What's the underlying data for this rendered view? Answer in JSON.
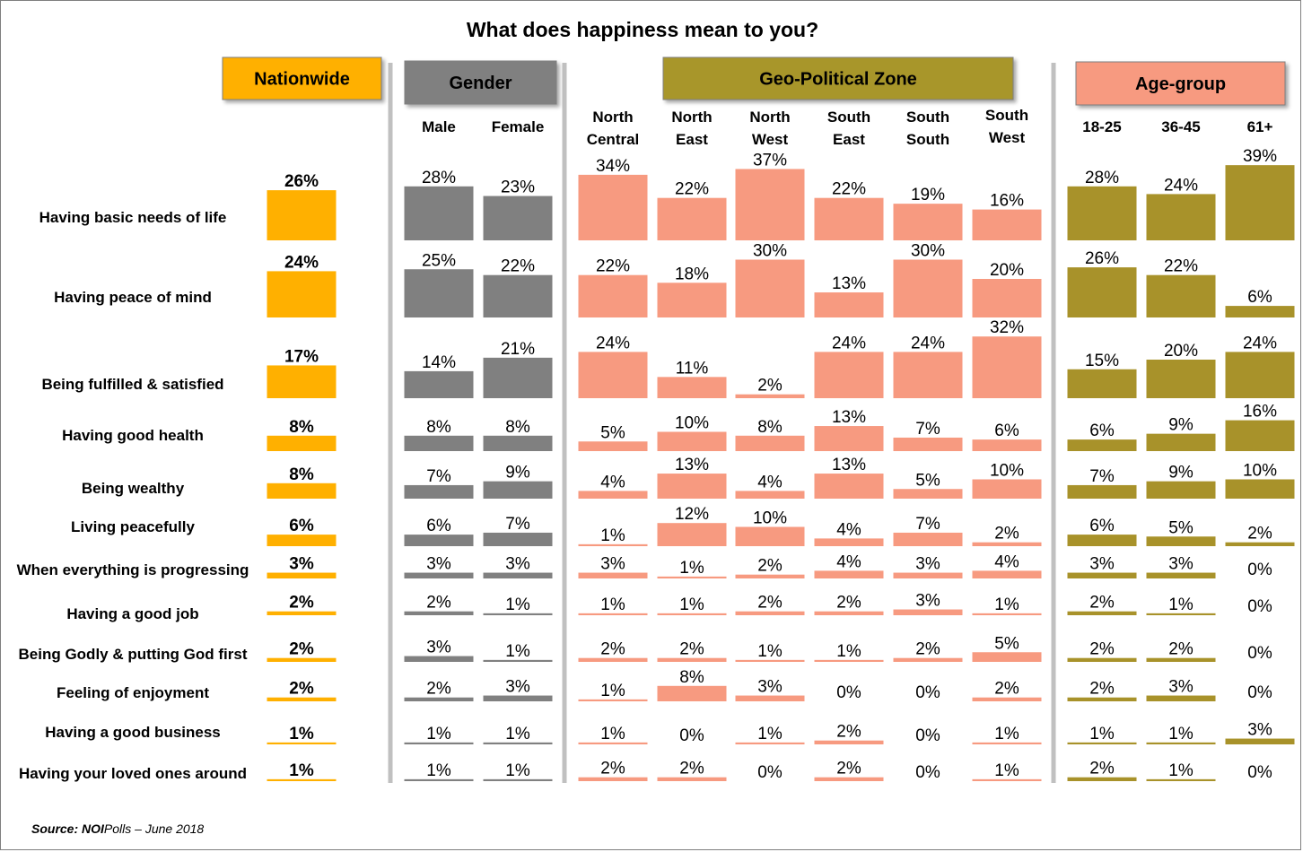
{
  "chart_data": {
    "type": "bar",
    "title": "What does happiness mean to you?",
    "source_prefix": "Source: NOI",
    "source_suffix": "Polls – June 2018",
    "categories": [
      "Having basic needs of life",
      "Having peace of mind",
      "Being fulfilled & satisfied",
      "Having good health",
      "Being wealthy",
      "Living peacefully",
      "When everything is progressing",
      "Having a good job",
      "Being Godly & putting God first",
      "Feeling of enjoyment",
      "Having a good business",
      "Having your loved ones around"
    ],
    "groups": [
      {
        "name": "Nationwide",
        "color": "#FFB000",
        "header_color": "#FFB000",
        "series": [
          {
            "name": "",
            "values": [
              26,
              24,
              17,
              8,
              8,
              6,
              3,
              2,
              2,
              2,
              1,
              1
            ]
          }
        ]
      },
      {
        "name": "Gender",
        "color": "#808080",
        "header_color": "#808080",
        "series": [
          {
            "name": "Male",
            "values": [
              28,
              25,
              14,
              8,
              7,
              6,
              3,
              2,
              3,
              2,
              1,
              1
            ]
          },
          {
            "name": "Female",
            "values": [
              23,
              22,
              21,
              8,
              9,
              7,
              3,
              1,
              1,
              3,
              1,
              1
            ]
          }
        ]
      },
      {
        "name": "Geo-Political Zone",
        "color": "#F79A80",
        "header_color": "#A8962A",
        "series": [
          {
            "name": "North Central",
            "values": [
              34,
              22,
              24,
              5,
              4,
              1,
              3,
              1,
              2,
              1,
              1,
              2
            ]
          },
          {
            "name": "North East",
            "values": [
              22,
              18,
              11,
              10,
              13,
              12,
              1,
              1,
              2,
              8,
              0,
              2
            ]
          },
          {
            "name": "North West",
            "values": [
              37,
              30,
              2,
              8,
              4,
              10,
              2,
              2,
              1,
              3,
              1,
              0
            ]
          },
          {
            "name": "South East",
            "values": [
              22,
              13,
              24,
              13,
              13,
              4,
              4,
              2,
              1,
              0,
              2,
              2
            ]
          },
          {
            "name": "South South",
            "values": [
              19,
              30,
              24,
              7,
              5,
              7,
              3,
              3,
              2,
              0,
              0,
              0
            ]
          },
          {
            "name": "South West",
            "values": [
              16,
              20,
              32,
              6,
              10,
              2,
              4,
              1,
              5,
              2,
              1,
              1
            ]
          }
        ]
      },
      {
        "name": "Age-group",
        "color": "#A8922A",
        "header_color": "#F79A80",
        "series": [
          {
            "name": "18-25",
            "values": [
              28,
              26,
              15,
              6,
              7,
              6,
              3,
              2,
              2,
              2,
              1,
              2
            ]
          },
          {
            "name": "36-45",
            "values": [
              24,
              22,
              20,
              9,
              9,
              5,
              3,
              1,
              2,
              3,
              1,
              1
            ]
          },
          {
            "name": "61+",
            "values": [
              39,
              6,
              24,
              16,
              10,
              2,
              0,
              0,
              0,
              0,
              3,
              0
            ]
          }
        ]
      }
    ],
    "unit": "%",
    "grid": false
  }
}
